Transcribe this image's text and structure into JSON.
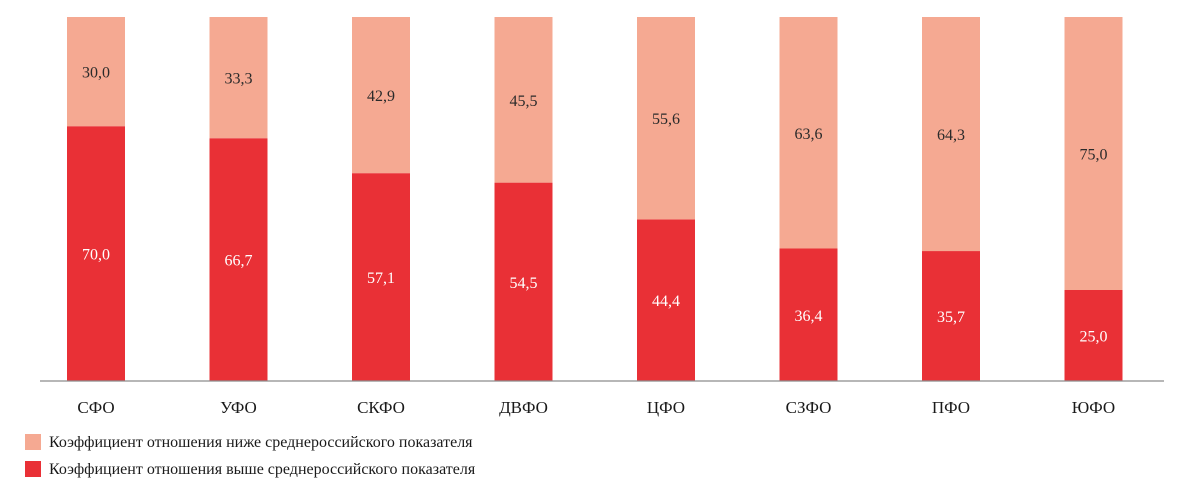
{
  "chart_data": {
    "type": "bar",
    "stacked": true,
    "categories": [
      "СФО",
      "УФО",
      "СКФО",
      "ДВФО",
      "ЦФО",
      "СЗФО",
      "ПФО",
      "ЮФО"
    ],
    "series": [
      {
        "name": "Коэффициент отношения выше среднероссийского показателя",
        "color": "#e93036",
        "values": [
          70.0,
          66.7,
          57.1,
          54.5,
          44.4,
          36.4,
          35.7,
          25.0
        ],
        "labels": [
          "70,0",
          "66,7",
          "57,1",
          "54,5",
          "44,4",
          "36,4",
          "35,7",
          "25,0"
        ]
      },
      {
        "name": "Коэффициент отношения ниже среднероссийского показателя",
        "color": "#f5a992",
        "values": [
          30.0,
          33.3,
          42.9,
          45.5,
          55.6,
          63.6,
          64.3,
          75.0
        ],
        "labels": [
          "30,0",
          "33,3",
          "42,9",
          "45,5",
          "55,6",
          "63,6",
          "64,3",
          "75,0"
        ]
      }
    ],
    "ylim": [
      0,
      100
    ],
    "title": "",
    "xlabel": "",
    "ylabel": "",
    "grid": false,
    "legend_position": "bottom-left",
    "legend_order": [
      1,
      0
    ]
  }
}
